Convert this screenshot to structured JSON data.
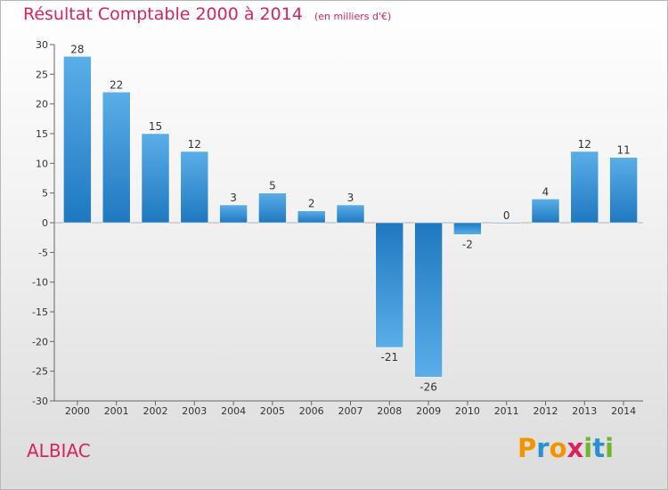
{
  "header": {
    "title": "Résultat Comptable 2000 à 2014",
    "subtitle": "(en milliers d'€)"
  },
  "footer": {
    "place": "ALBIAC",
    "logo_letters": [
      "P",
      "r",
      "o",
      "x",
      "i",
      "t",
      "i"
    ]
  },
  "colors": {
    "title": "#d9235c",
    "bar_dark": "#1f78bf",
    "bar_light": "#5aaee8"
  },
  "chart_data": {
    "type": "bar",
    "title": "Résultat Comptable 2000 à 2014",
    "subtitle": "(en milliers d'€)",
    "xlabel": "",
    "ylabel": "",
    "categories": [
      "2000",
      "2001",
      "2002",
      "2003",
      "2004",
      "2005",
      "2006",
      "2007",
      "2008",
      "2009",
      "2010",
      "2011",
      "2012",
      "2013",
      "2014"
    ],
    "values": [
      28,
      22,
      15,
      12,
      3,
      5,
      2,
      3,
      -21,
      -26,
      -2,
      0,
      4,
      12,
      11
    ],
    "ylim": [
      -30,
      30
    ],
    "yticks": [
      30,
      25,
      20,
      15,
      10,
      5,
      0,
      -5,
      -10,
      -15,
      -20,
      -25,
      -30
    ],
    "grid": false,
    "legend": "none"
  }
}
